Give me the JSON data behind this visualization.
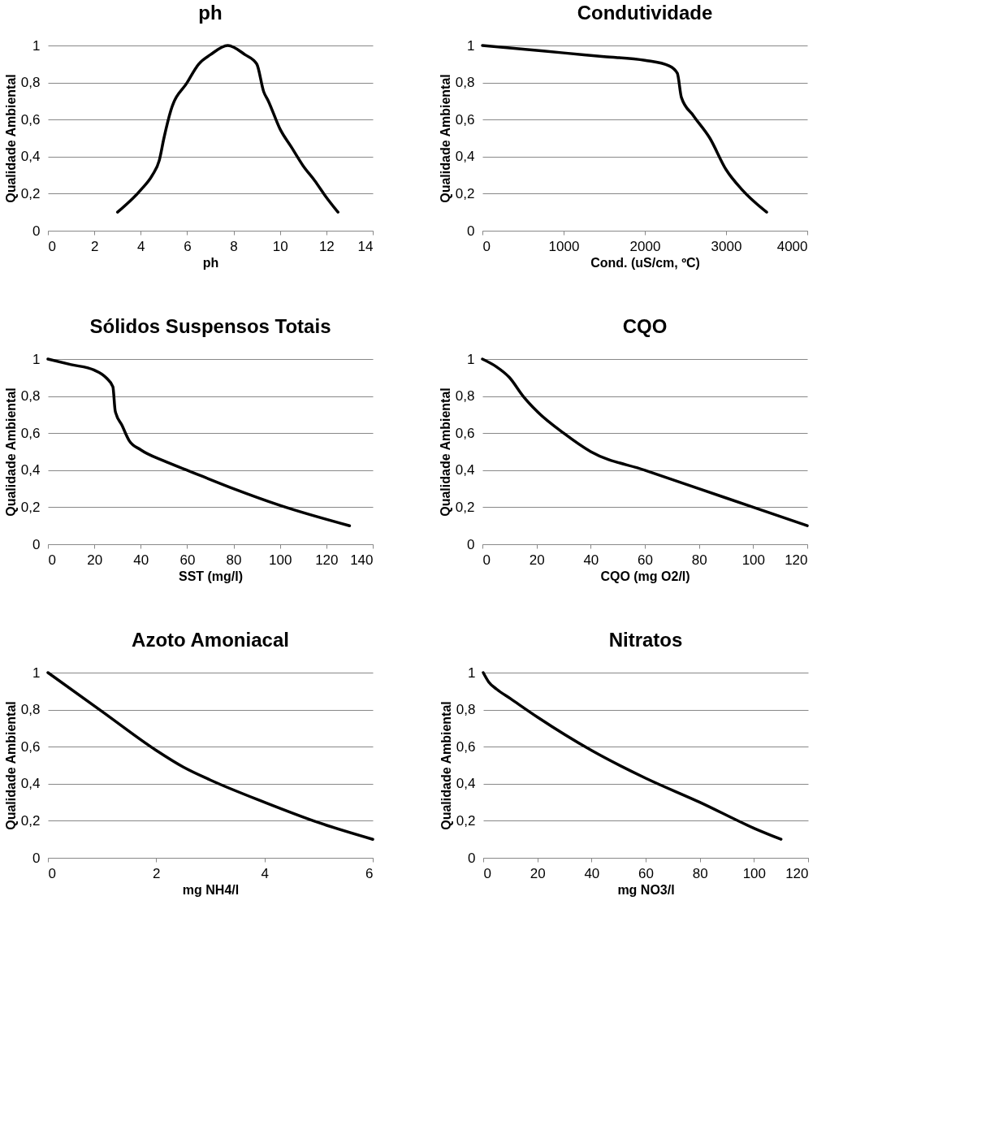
{
  "chart_data": [
    {
      "type": "line",
      "title": "ph",
      "xlabel": "ph",
      "ylabel": "Qualidade Ambiental",
      "grid": "y",
      "marker": "none",
      "line_style": "solid",
      "xlim": [
        0,
        14
      ],
      "xticks": [
        0,
        2,
        4,
        6,
        8,
        10,
        12,
        14
      ],
      "ylim": [
        0,
        1
      ],
      "yticks": [
        {
          "value": 0,
          "label": "0"
        },
        {
          "value": 0.2,
          "label": "0,2"
        },
        {
          "value": 0.4,
          "label": "0,4"
        },
        {
          "value": 0.6,
          "label": "0,6"
        },
        {
          "value": 0.8,
          "label": "0,8"
        },
        {
          "value": 1,
          "label": "1"
        }
      ],
      "x": [
        3,
        4,
        4.5,
        4.8,
        5,
        5.3,
        6,
        6.5,
        7,
        7.75,
        8.5,
        9,
        9.3,
        9.5,
        10,
        10.5,
        11,
        11.5,
        12,
        12.5
      ],
      "series": [
        {
          "color": "#000000",
          "values": [
            0.1,
            0.22,
            0.3,
            0.38,
            0.5,
            0.65,
            0.8,
            0.9,
            0.95,
            1.0,
            0.95,
            0.9,
            0.75,
            0.7,
            0.55,
            0.45,
            0.35,
            0.27,
            0.18,
            0.1
          ]
        }
      ]
    },
    {
      "type": "line",
      "title": "Condutividade",
      "xlabel": "Cond. (uS/cm, ºC)",
      "ylabel": "Qualidade Ambiental",
      "grid": "y",
      "marker": "none",
      "line_style": "solid",
      "xlim": [
        0,
        4000
      ],
      "xticks": [
        0,
        1000,
        2000,
        3000,
        4000
      ],
      "ylim": [
        0,
        1
      ],
      "yticks": [
        {
          "value": 0,
          "label": "0"
        },
        {
          "value": 0.2,
          "label": "0,2"
        },
        {
          "value": 0.4,
          "label": "0,4"
        },
        {
          "value": 0.6,
          "label": "0,6"
        },
        {
          "value": 0.8,
          "label": "0,8"
        },
        {
          "value": 1,
          "label": "1"
        }
      ],
      "x": [
        0,
        500,
        1000,
        1500,
        2000,
        2300,
        2400,
        2450,
        2600,
        2800,
        3000,
        3200,
        3500
      ],
      "series": [
        {
          "color": "#000000",
          "values": [
            1,
            0.98,
            0.96,
            0.94,
            0.92,
            0.89,
            0.85,
            0.72,
            0.62,
            0.5,
            0.33,
            0.22,
            0.1
          ]
        }
      ]
    },
    {
      "type": "line",
      "title": "Sólidos Suspensos Totais",
      "xlabel": "SST (mg/l)",
      "ylabel": "Qualidade Ambiental",
      "grid": "y",
      "marker": "none",
      "line_style": "solid",
      "xlim": [
        0,
        140
      ],
      "xticks": [
        0,
        20,
        40,
        60,
        80,
        100,
        120,
        140
      ],
      "ylim": [
        0,
        1
      ],
      "yticks": [
        {
          "value": 0,
          "label": "0"
        },
        {
          "value": 0.2,
          "label": "0,2"
        },
        {
          "value": 0.4,
          "label": "0,4"
        },
        {
          "value": 0.6,
          "label": "0,6"
        },
        {
          "value": 0.8,
          "label": "0,8"
        },
        {
          "value": 1,
          "label": "1"
        }
      ],
      "x": [
        0,
        10,
        20,
        25,
        28,
        29,
        32,
        35,
        40,
        50,
        60,
        80,
        100,
        130
      ],
      "series": [
        {
          "color": "#000000",
          "values": [
            1,
            0.97,
            0.94,
            0.9,
            0.85,
            0.72,
            0.64,
            0.56,
            0.51,
            0.45,
            0.4,
            0.3,
            0.21,
            0.1
          ]
        }
      ]
    },
    {
      "type": "line",
      "title": "CQO",
      "xlabel": "CQO (mg O2/l)",
      "ylabel": "Qualidade Ambiental",
      "grid": "y",
      "marker": "none",
      "line_style": "solid",
      "xlim": [
        0,
        120
      ],
      "xticks": [
        0,
        20,
        40,
        60,
        80,
        100,
        120
      ],
      "ylim": [
        0,
        1
      ],
      "yticks": [
        {
          "value": 0,
          "label": "0"
        },
        {
          "value": 0.2,
          "label": "0,2"
        },
        {
          "value": 0.4,
          "label": "0,4"
        },
        {
          "value": 0.6,
          "label": "0,6"
        },
        {
          "value": 0.8,
          "label": "0,8"
        },
        {
          "value": 1,
          "label": "1"
        }
      ],
      "x": [
        0,
        5,
        10,
        15,
        20,
        30,
        40,
        60,
        80,
        100,
        120
      ],
      "series": [
        {
          "color": "#000000",
          "values": [
            1,
            0.96,
            0.9,
            0.8,
            0.72,
            0.6,
            0.5,
            0.4,
            0.3,
            0.2,
            0.1
          ]
        }
      ]
    },
    {
      "type": "line",
      "title": "Azoto Amoniacal",
      "xlabel": "mg NH4/l",
      "ylabel": "Qualidade Ambiental",
      "grid": "y",
      "marker": "none",
      "line_style": "solid",
      "xlim": [
        0,
        6
      ],
      "xticks": [
        0,
        2,
        4,
        6
      ],
      "ylim": [
        0,
        1
      ],
      "yticks": [
        {
          "value": 0,
          "label": "0"
        },
        {
          "value": 0.2,
          "label": "0,2"
        },
        {
          "value": 0.4,
          "label": "0,4"
        },
        {
          "value": 0.6,
          "label": "0,6"
        },
        {
          "value": 0.8,
          "label": "0,8"
        },
        {
          "value": 1,
          "label": "1"
        }
      ],
      "x": [
        0,
        1,
        2,
        2.5,
        3,
        4,
        5,
        6
      ],
      "series": [
        {
          "color": "#000000",
          "values": [
            1,
            0.79,
            0.58,
            0.49,
            0.42,
            0.3,
            0.19,
            0.1
          ]
        }
      ]
    },
    {
      "type": "line",
      "title": "Nitratos",
      "xlabel": "mg NO3/l",
      "ylabel": "Qualidade Ambiental",
      "grid": "y",
      "marker": "none",
      "line_style": "solid",
      "xlim": [
        0,
        120
      ],
      "xticks": [
        0,
        20,
        40,
        60,
        80,
        100,
        120
      ],
      "ylim": [
        0,
        1
      ],
      "yticks": [
        {
          "value": 0,
          "label": "0"
        },
        {
          "value": 0.2,
          "label": "0,2"
        },
        {
          "value": 0.4,
          "label": "0,4"
        },
        {
          "value": 0.6,
          "label": "0,6"
        },
        {
          "value": 0.8,
          "label": "0,8"
        },
        {
          "value": 1,
          "label": "1"
        }
      ],
      "x": [
        0,
        2,
        5,
        10,
        20,
        40,
        60,
        80,
        100,
        110
      ],
      "series": [
        {
          "color": "#000000",
          "values": [
            1,
            0.95,
            0.91,
            0.86,
            0.76,
            0.58,
            0.43,
            0.3,
            0.16,
            0.1
          ]
        }
      ]
    }
  ]
}
